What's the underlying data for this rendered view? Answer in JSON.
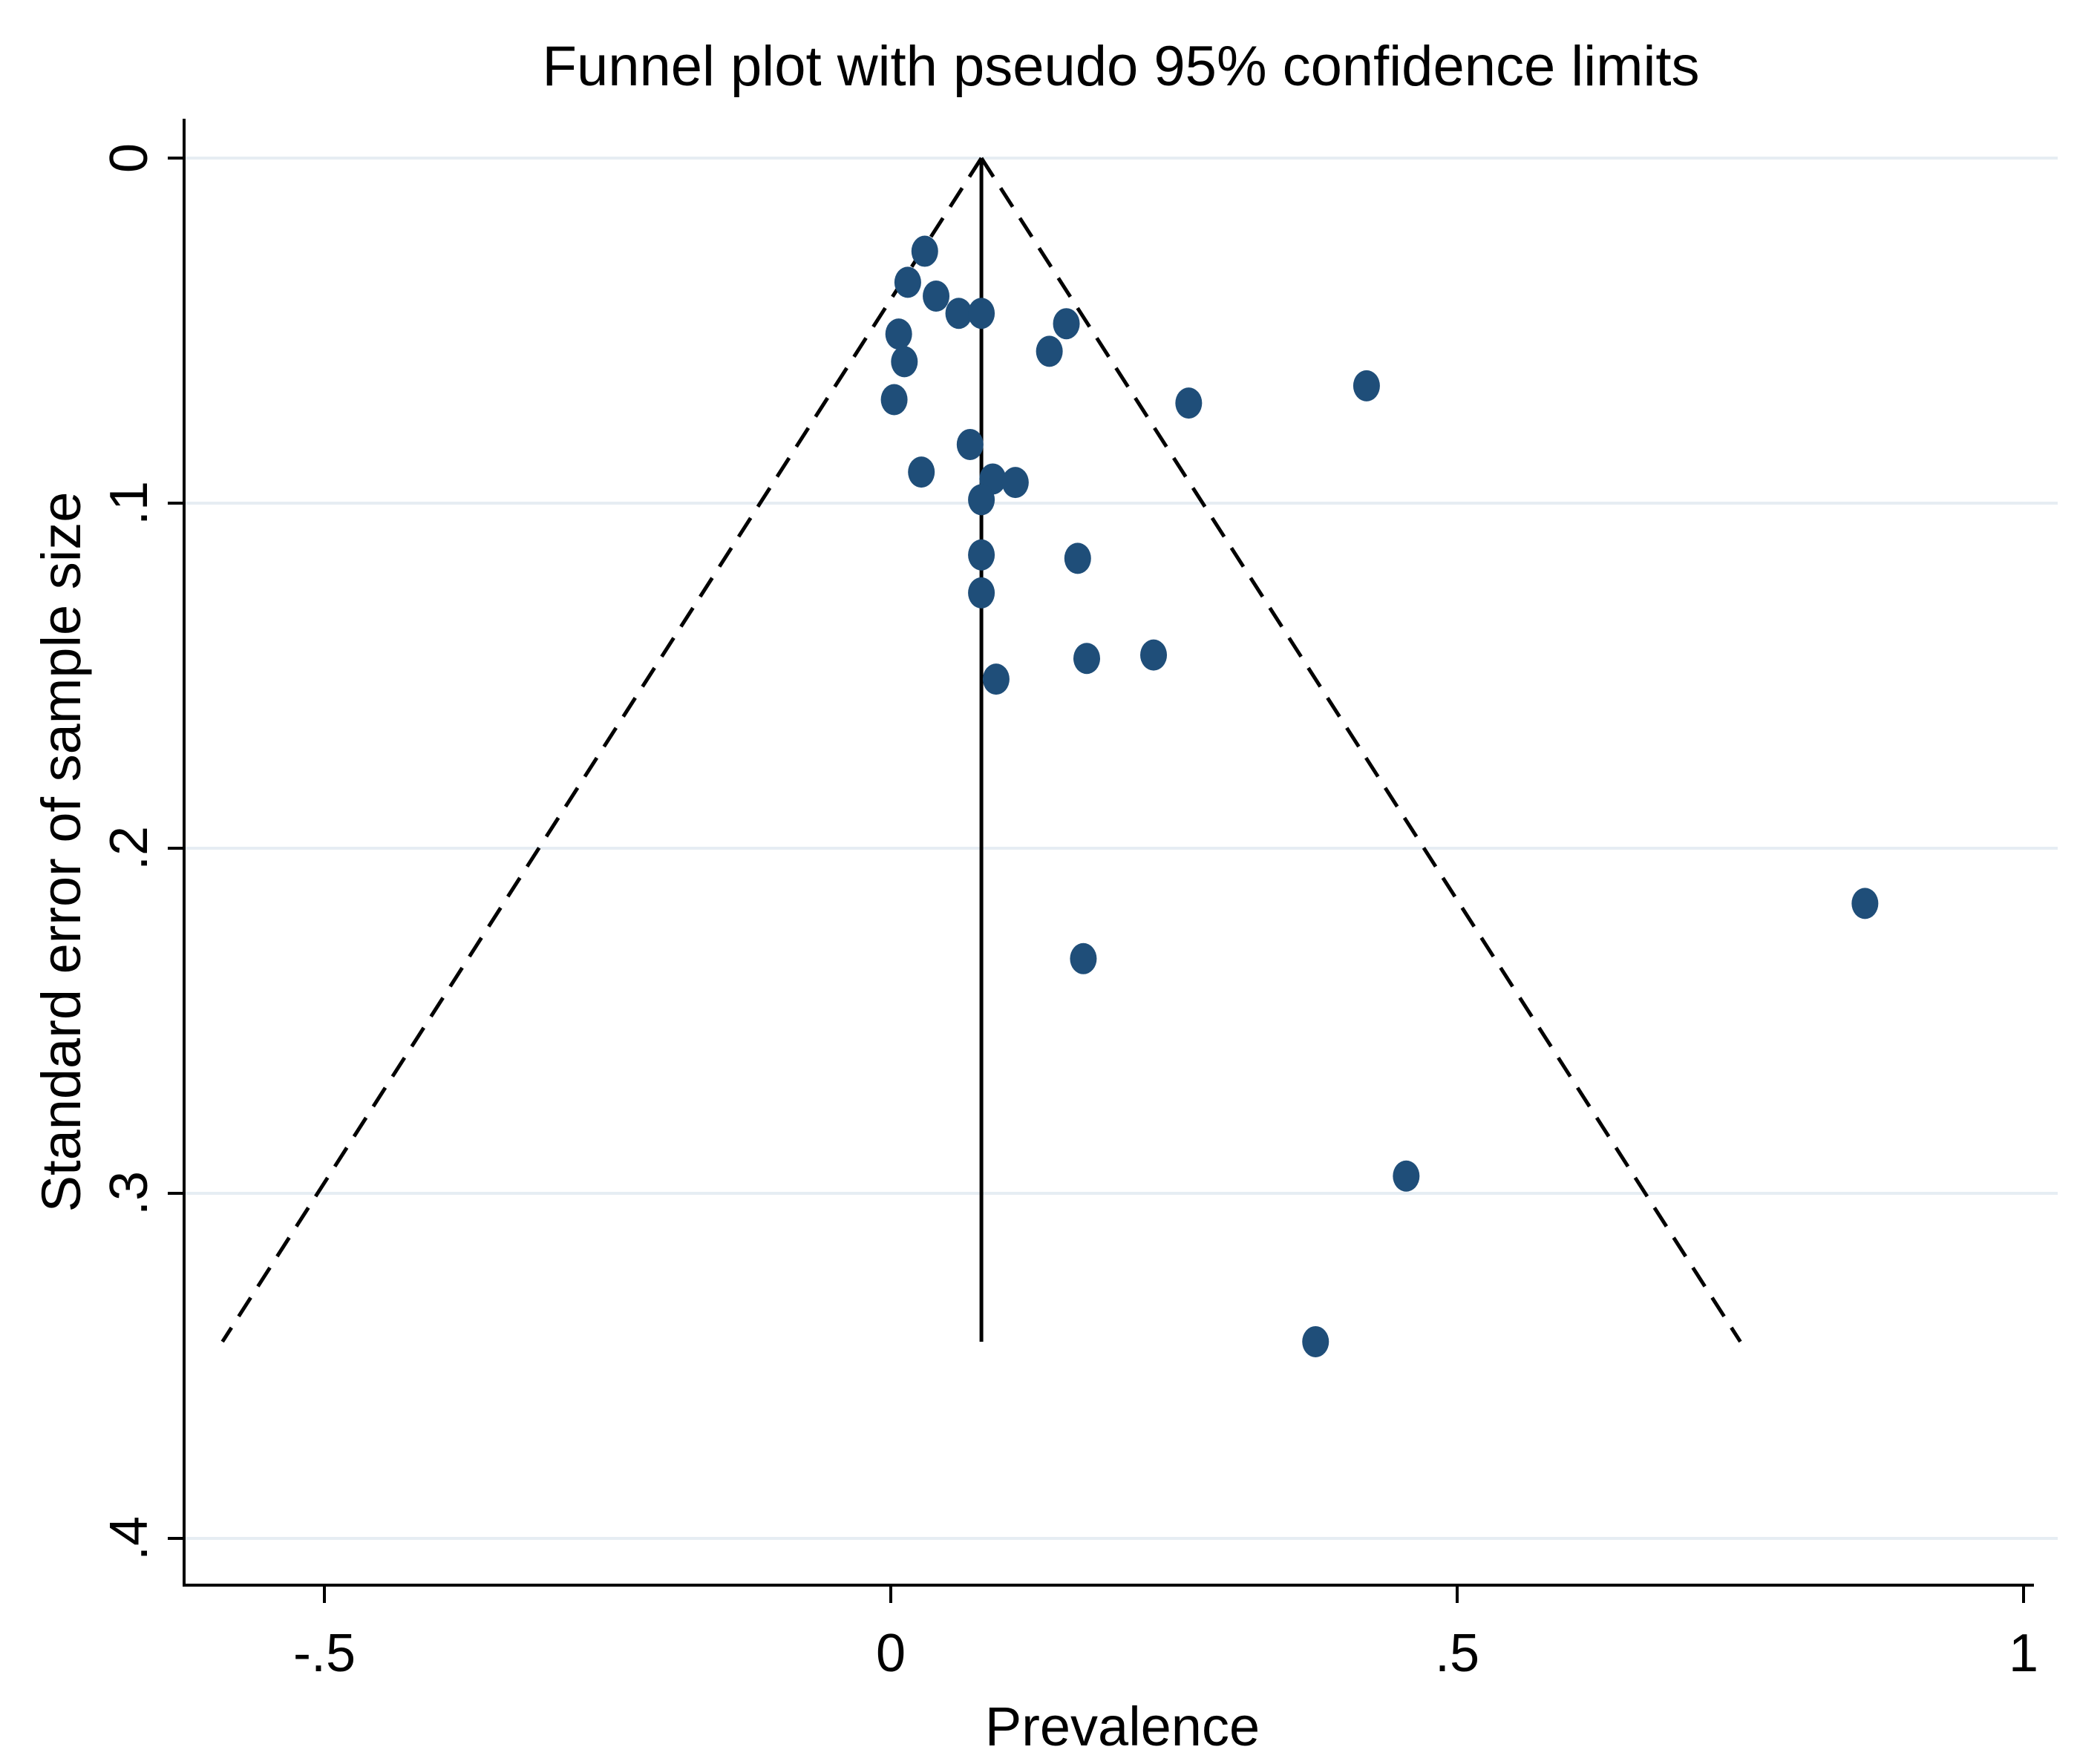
{
  "chart_data": {
    "type": "scatter",
    "title": "Funnel plot with pseudo 95% confidence limits",
    "xlabel": "Prevalence",
    "ylabel": "Standard error of sample size",
    "xlim": [
      -0.625,
      1.0
    ],
    "ylim": [
      0,
      0.4
    ],
    "y_reversed": true,
    "x_ticks": [
      {
        "value": -0.5,
        "label": "-.5"
      },
      {
        "value": 0,
        "label": "0"
      },
      {
        "value": 0.5,
        "label": ".5"
      },
      {
        "value": 1,
        "label": "1"
      }
    ],
    "y_ticks": [
      {
        "value": 0,
        "label": "0"
      },
      {
        "value": 0.1,
        "label": ".1"
      },
      {
        "value": 0.2,
        "label": ".2"
      },
      {
        "value": 0.3,
        "label": ".3"
      },
      {
        "value": 0.4,
        "label": ".4"
      }
    ],
    "grid": "horizontal",
    "pooled_estimate": 0.08,
    "pooled_line_se_max": 0.343,
    "confidence_limits": {
      "apex": [
        0.08,
        0
      ],
      "lower_end": [
        -0.59,
        0.343
      ],
      "upper_end": [
        0.75,
        0.343
      ]
    },
    "points": [
      {
        "x": 0.03,
        "y": 0.027
      },
      {
        "x": 0.015,
        "y": 0.036
      },
      {
        "x": 0.04,
        "y": 0.04
      },
      {
        "x": 0.06,
        "y": 0.045
      },
      {
        "x": 0.08,
        "y": 0.045
      },
      {
        "x": 0.155,
        "y": 0.048
      },
      {
        "x": 0.007,
        "y": 0.051
      },
      {
        "x": 0.14,
        "y": 0.056
      },
      {
        "x": 0.012,
        "y": 0.059
      },
      {
        "x": 0.42,
        "y": 0.066
      },
      {
        "x": 0.003,
        "y": 0.07
      },
      {
        "x": 0.263,
        "y": 0.071
      },
      {
        "x": 0.07,
        "y": 0.083
      },
      {
        "x": 0.027,
        "y": 0.091
      },
      {
        "x": 0.09,
        "y": 0.093
      },
      {
        "x": 0.11,
        "y": 0.094
      },
      {
        "x": 0.08,
        "y": 0.099
      },
      {
        "x": 0.08,
        "y": 0.115
      },
      {
        "x": 0.165,
        "y": 0.116
      },
      {
        "x": 0.08,
        "y": 0.126
      },
      {
        "x": 0.232,
        "y": 0.144
      },
      {
        "x": 0.173,
        "y": 0.145
      },
      {
        "x": 0.093,
        "y": 0.151
      },
      {
        "x": 0.86,
        "y": 0.216
      },
      {
        "x": 0.17,
        "y": 0.232
      },
      {
        "x": 0.455,
        "y": 0.295
      },
      {
        "x": 0.375,
        "y": 0.343
      }
    ],
    "colors": {
      "marker": "#1f4e79",
      "grid": "#e6edf3",
      "axis": "#000000"
    }
  }
}
